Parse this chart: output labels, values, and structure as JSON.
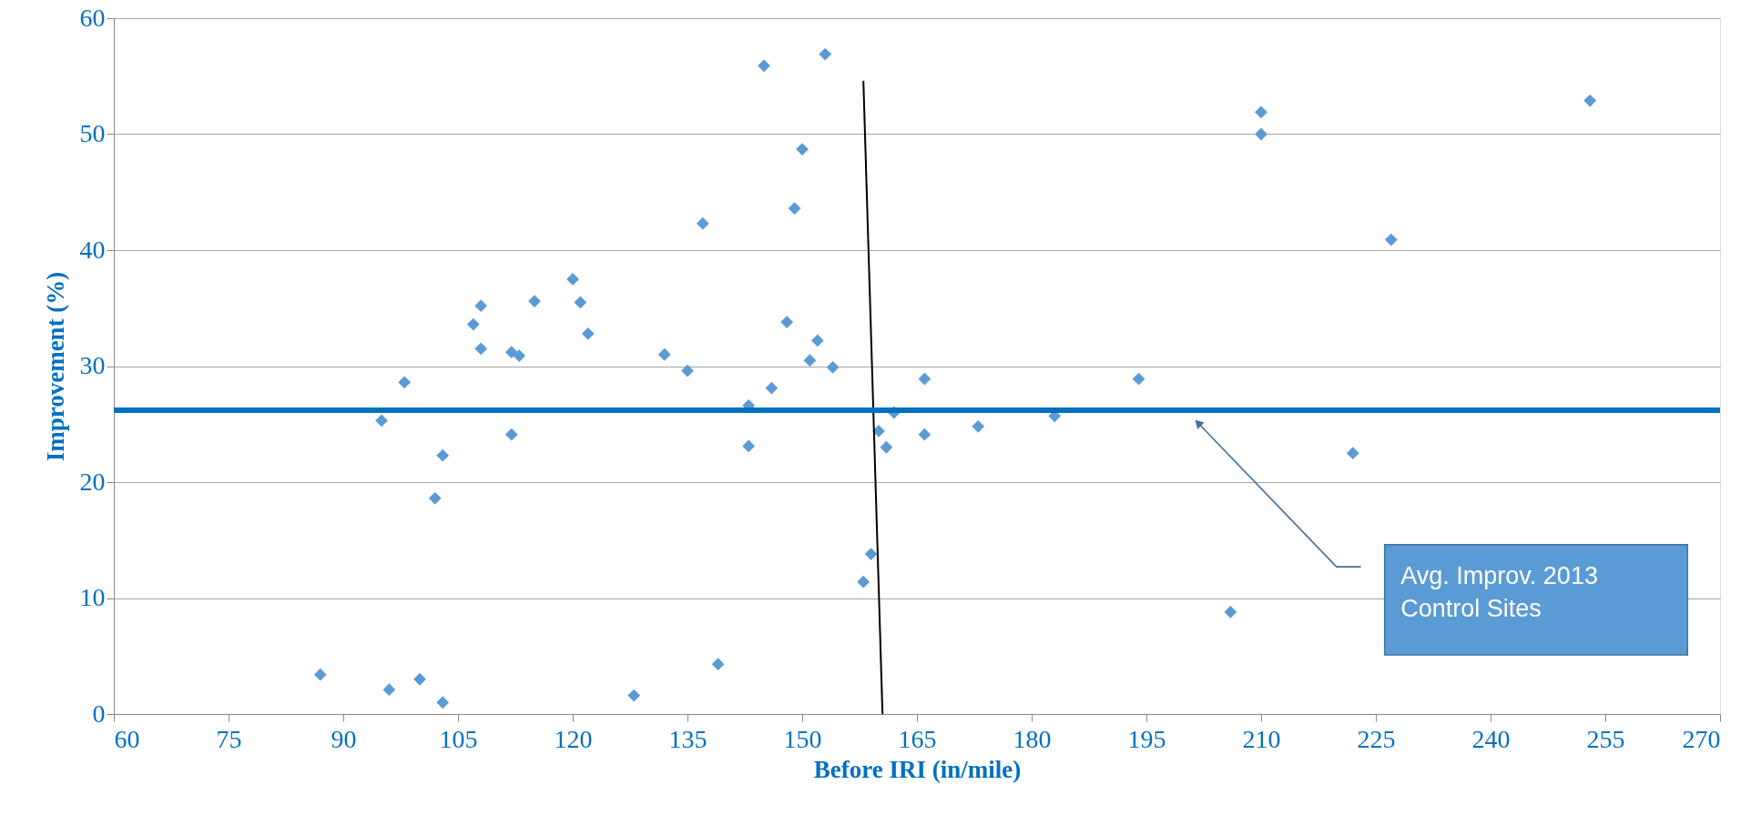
{
  "chart_data": {
    "type": "scatter",
    "xlabel": "Before IRI (in/mile)",
    "ylabel": "Improvement (%)",
    "xlim": [
      60,
      270
    ],
    "xticks": [
      60,
      75,
      90,
      105,
      120,
      135,
      150,
      165,
      180,
      195,
      210,
      225,
      240,
      255,
      270
    ],
    "ylim": [
      0,
      60
    ],
    "yticks": [
      0,
      10,
      20,
      30,
      40,
      50,
      60
    ],
    "grid": "y",
    "series": [
      {
        "color": "#5b9bd5",
        "marker": "diamond",
        "x": [
          87,
          95,
          96,
          98,
          100,
          102,
          103,
          103,
          107,
          108,
          108,
          112,
          112,
          113,
          115,
          120,
          121,
          122,
          128,
          132,
          135,
          137,
          139,
          143,
          143,
          145,
          146,
          148,
          149,
          150,
          151,
          152,
          153,
          154,
          158,
          159,
          160,
          161,
          162,
          166,
          166,
          173,
          183,
          194,
          206,
          210,
          210,
          222,
          227,
          253
        ],
        "values": [
          3.4,
          25.3,
          2.1,
          28.6,
          3.0,
          18.6,
          22.3,
          1.0,
          33.6,
          35.2,
          31.5,
          31.2,
          24.1,
          30.9,
          35.6,
          37.5,
          35.5,
          32.8,
          1.6,
          31.0,
          29.6,
          42.3,
          4.3,
          26.6,
          23.1,
          55.9,
          28.1,
          33.8,
          43.6,
          48.7,
          30.5,
          32.2,
          56.9,
          29.9,
          11.4,
          13.8,
          24.4,
          23.0,
          26.0,
          28.9,
          24.1,
          24.8,
          25.7,
          28.9,
          8.8,
          51.9,
          50.0,
          22.5,
          40.9,
          52.9
        ]
      },
      {
        "type": "line",
        "color": "#000000",
        "x": [
          158,
          160.5
        ],
        "values": [
          54.6,
          0
        ]
      }
    ],
    "ref_lines": [
      {
        "axis": "y",
        "value": 26.2,
        "color": "#0070c0"
      }
    ],
    "annotations": [
      "Avg. Improv. 2013\nControl Sites"
    ]
  }
}
